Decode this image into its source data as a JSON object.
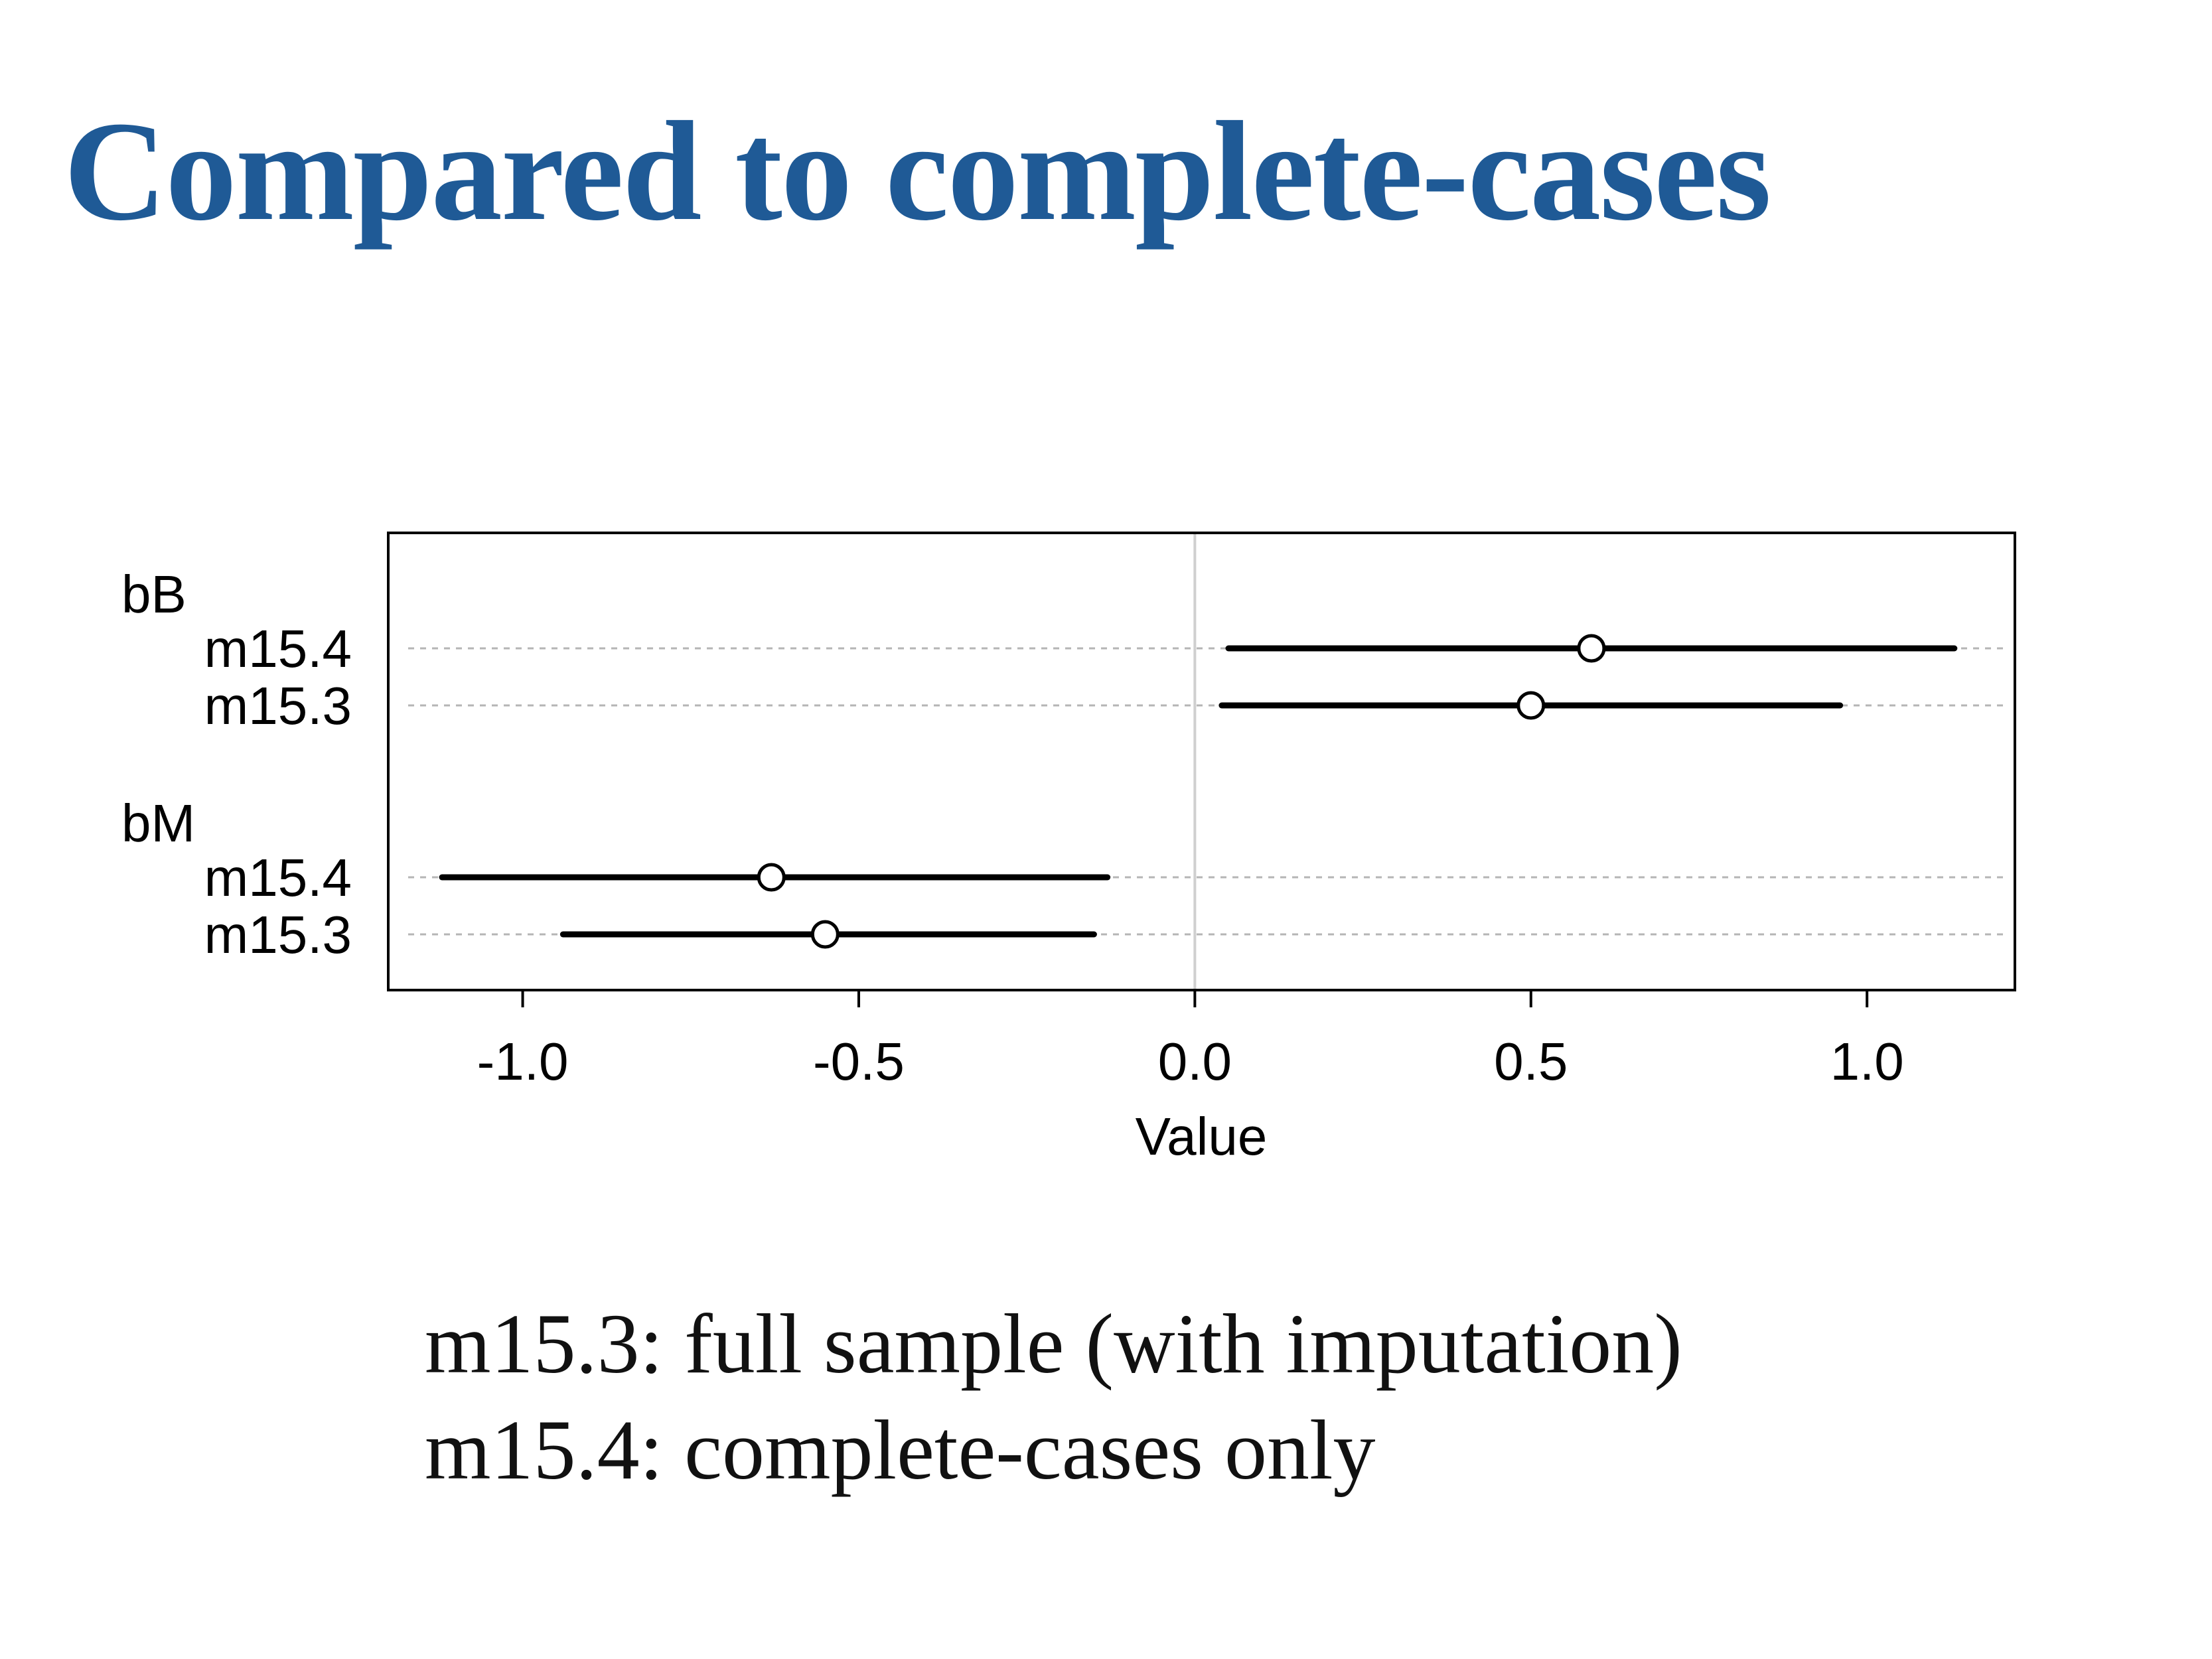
{
  "title": "Compared to complete-cases",
  "caption": {
    "line1": "m15.3: full sample (with imputation)",
    "line2": "m15.4: complete-cases only"
  },
  "colors": {
    "title": "#1f5a96",
    "interval": "#000000",
    "zero_line": "#cfcfcf",
    "row_guides": "#b5b5b5"
  },
  "chart_data": {
    "type": "dotplot",
    "xlabel": "Value",
    "xlim": [
      -1.2,
      1.22
    ],
    "xticks": [
      -1.0,
      -0.5,
      0.0,
      0.5,
      1.0
    ],
    "xtick_labels": [
      "-1.0",
      "-0.5",
      "0.0",
      "0.5",
      "1.0"
    ],
    "zero_line": true,
    "grid": false,
    "groups": [
      {
        "name": "bB",
        "rows": [
          {
            "label": "m15.4",
            "estimate": 0.59,
            "lower": 0.05,
            "upper": 1.13
          },
          {
            "label": "m15.3",
            "estimate": 0.5,
            "lower": 0.04,
            "upper": 0.96
          }
        ]
      },
      {
        "name": "bM",
        "rows": [
          {
            "label": "m15.4",
            "estimate": -0.63,
            "lower": -1.12,
            "upper": -0.13
          },
          {
            "label": "m15.3",
            "estimate": -0.55,
            "lower": -0.94,
            "upper": -0.15
          }
        ]
      }
    ]
  }
}
